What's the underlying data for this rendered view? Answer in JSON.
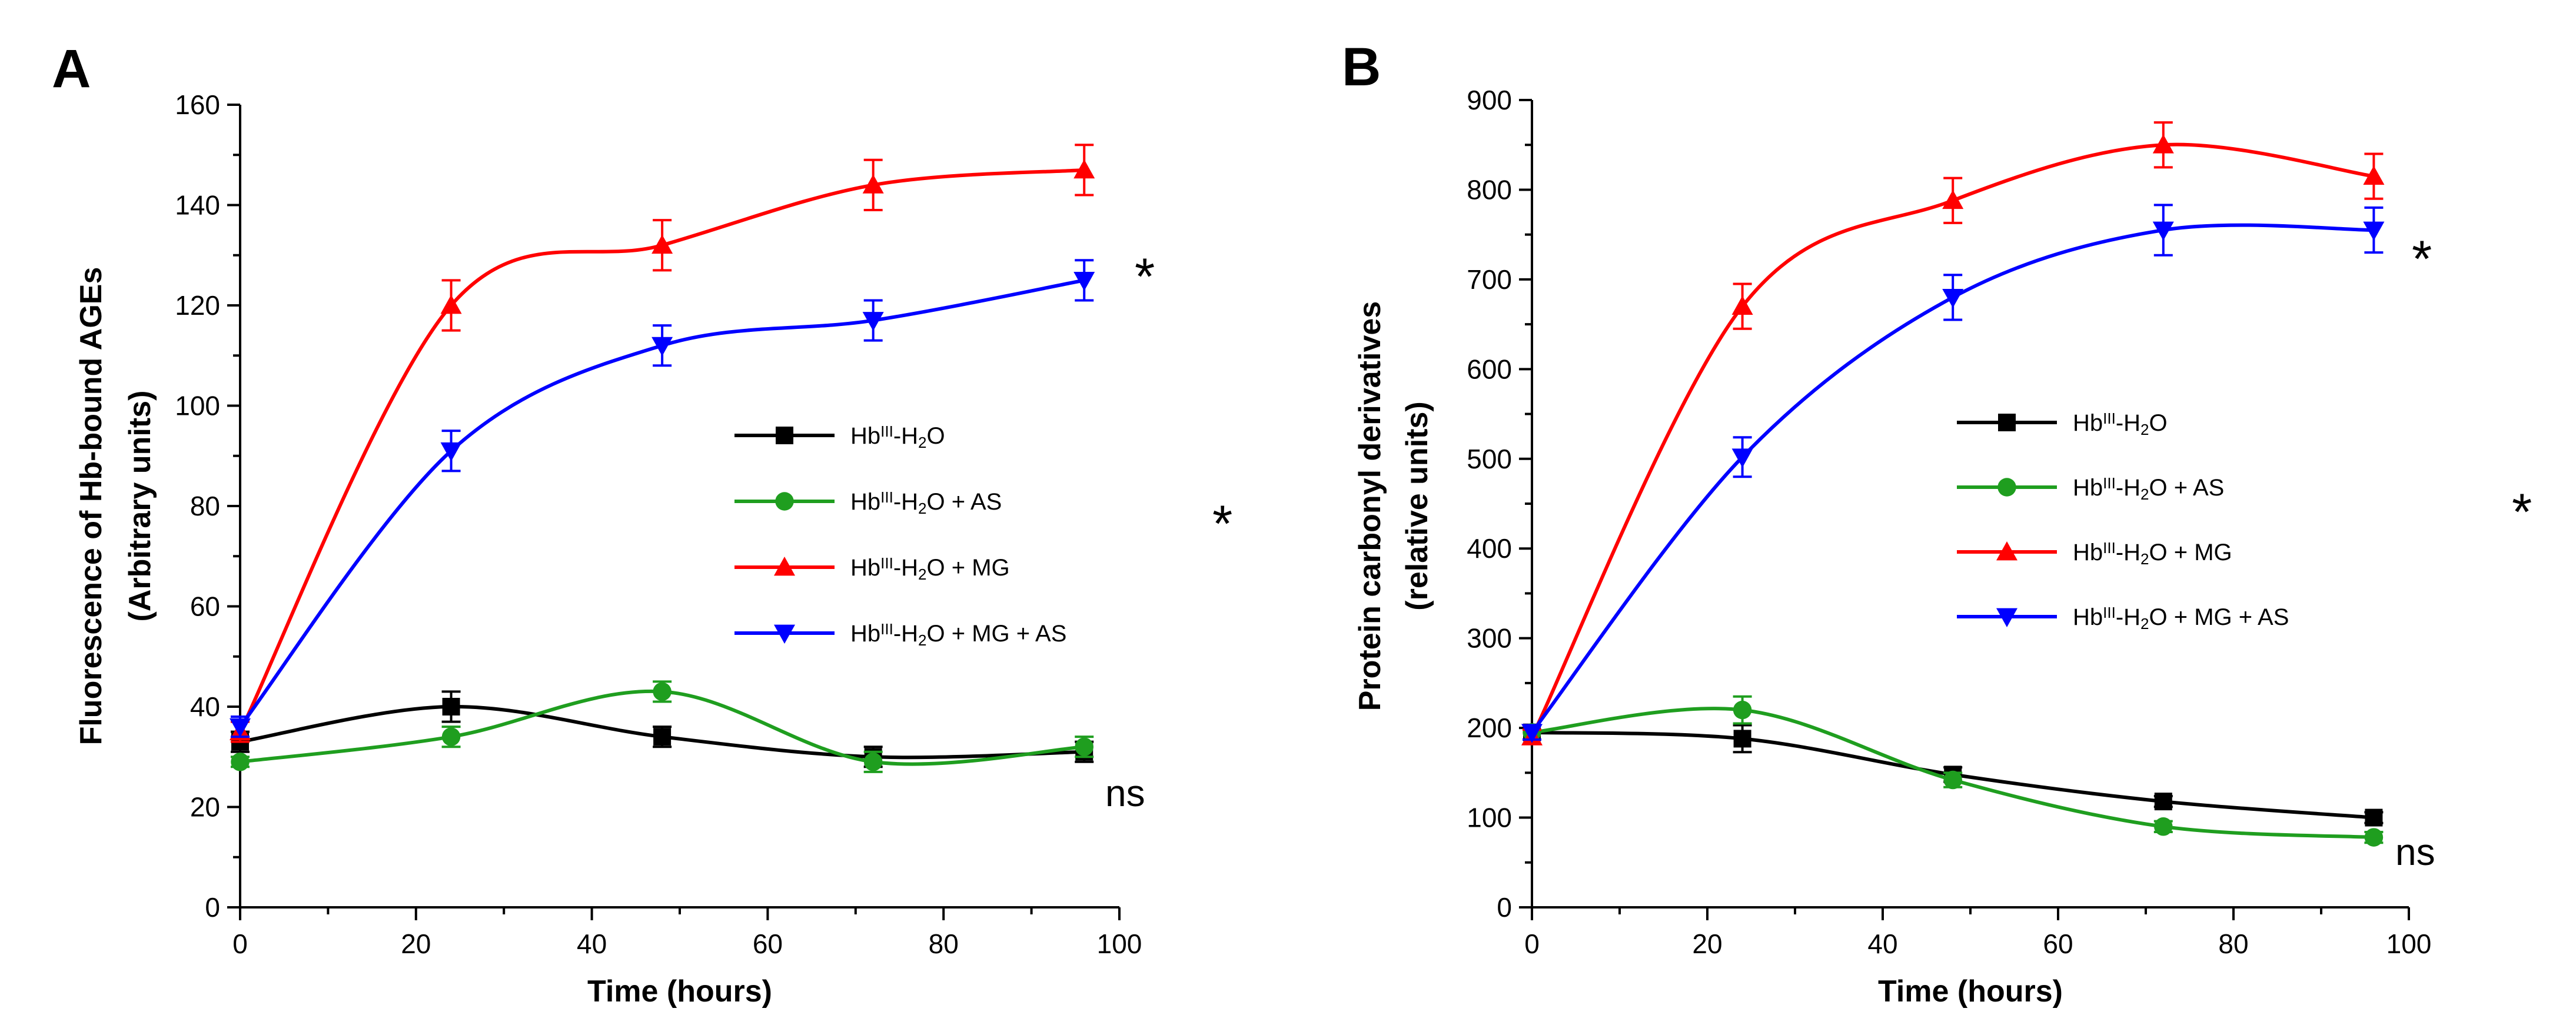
{
  "chart_data": [
    {
      "type": "line",
      "panel": "A",
      "xlabel": "Time (hours)",
      "ylabel_line1": "Fluorescence of Hb-bound AGEs",
      "ylabel_line2": "(Arbitrary units)",
      "xlim": [
        0,
        100
      ],
      "ylim": [
        0,
        160
      ],
      "xticks": [
        "0",
        "20",
        "40",
        "60",
        "80",
        "100"
      ],
      "yticks": [
        "0",
        "20",
        "40",
        "60",
        "80",
        "100",
        "120",
        "140",
        "160"
      ],
      "x": [
        0,
        24,
        48,
        72,
        96
      ],
      "series": [
        {
          "name": "HbIII-H2O",
          "label_main": "Hb",
          "label_sup": "III",
          "label_mid": "-H",
          "label_sub": "2",
          "label_tail": "O",
          "color": "#000000",
          "marker": "square",
          "values": [
            33,
            40,
            34,
            30,
            31
          ],
          "errors": [
            2,
            3,
            2,
            2,
            2
          ]
        },
        {
          "name": "HbIII-H2O + AS",
          "label_main": "Hb",
          "label_sup": "III",
          "label_mid": "-H",
          "label_sub": "2",
          "label_tail": "O + AS",
          "color": "#1f9e1f",
          "marker": "circle",
          "values": [
            29,
            34,
            43,
            29,
            32
          ],
          "errors": [
            1,
            2,
            2,
            2,
            2
          ]
        },
        {
          "name": "HbIII-H2O + MG",
          "label_main": "Hb",
          "label_sup": "III",
          "label_mid": "-H",
          "label_sub": "2",
          "label_tail": "O + MG",
          "color": "#ff0000",
          "marker": "triangle-up",
          "values": [
            35,
            120,
            132,
            144,
            147
          ],
          "errors": [
            2,
            5,
            5,
            5,
            5
          ]
        },
        {
          "name": "HbIII-H2O + MG + AS",
          "label_main": "Hb",
          "label_sup": "III",
          "label_mid": "-H",
          "label_sub": "2",
          "label_tail": "O + MG + AS",
          "color": "#0000ff",
          "marker": "triangle-down",
          "values": [
            36,
            91,
            112,
            117,
            125
          ],
          "errors": [
            2,
            4,
            4,
            4,
            4
          ]
        }
      ],
      "legend_position": "center-right",
      "annotations": [
        "*",
        "*",
        "ns"
      ]
    },
    {
      "type": "line",
      "panel": "B",
      "xlabel": "Time (hours)",
      "ylabel_line1": "Protein carbonyl derivatives",
      "ylabel_line2": "(relative units)",
      "xlim": [
        0,
        100
      ],
      "ylim": [
        0,
        900
      ],
      "xticks": [
        "0",
        "20",
        "40",
        "60",
        "80",
        "100"
      ],
      "yticks": [
        "0",
        "100",
        "200",
        "300",
        "400",
        "500",
        "600",
        "700",
        "800",
        "900"
      ],
      "x": [
        0,
        24,
        48,
        72,
        96
      ],
      "series": [
        {
          "name": "HbIII-H2O",
          "label_main": "Hb",
          "label_sup": "III",
          "label_mid": "-H",
          "label_sub": "2",
          "label_tail": "O",
          "color": "#000000",
          "marker": "square",
          "values": [
            195,
            188,
            148,
            118,
            100
          ],
          "errors": [
            8,
            15,
            8,
            6,
            6
          ]
        },
        {
          "name": "HbIII-H2O + AS",
          "label_main": "Hb",
          "label_sup": "III",
          "label_mid": "-H",
          "label_sub": "2",
          "label_tail": "O + AS",
          "color": "#1f9e1f",
          "marker": "circle",
          "values": [
            195,
            220,
            142,
            90,
            78
          ],
          "errors": [
            8,
            15,
            8,
            6,
            6
          ]
        },
        {
          "name": "HbIII-H2O + MG",
          "label_main": "Hb",
          "label_sup": "III",
          "label_mid": "-H",
          "label_sub": "2",
          "label_tail": "O + MG",
          "color": "#ff0000",
          "marker": "triangle-up",
          "values": [
            190,
            670,
            788,
            850,
            815
          ],
          "errors": [
            8,
            25,
            25,
            25,
            25
          ]
        },
        {
          "name": "HbIII-H2O + MG + AS",
          "label_main": "Hb",
          "label_sup": "III",
          "label_mid": "-H",
          "label_sub": "2",
          "label_tail": "O + MG + AS",
          "color": "#0000ff",
          "marker": "triangle-down",
          "values": [
            195,
            502,
            680,
            755,
            755
          ],
          "errors": [
            8,
            22,
            25,
            28,
            25
          ]
        }
      ],
      "legend_position": "center-right",
      "annotations": [
        "*",
        "*",
        "ns"
      ]
    }
  ]
}
